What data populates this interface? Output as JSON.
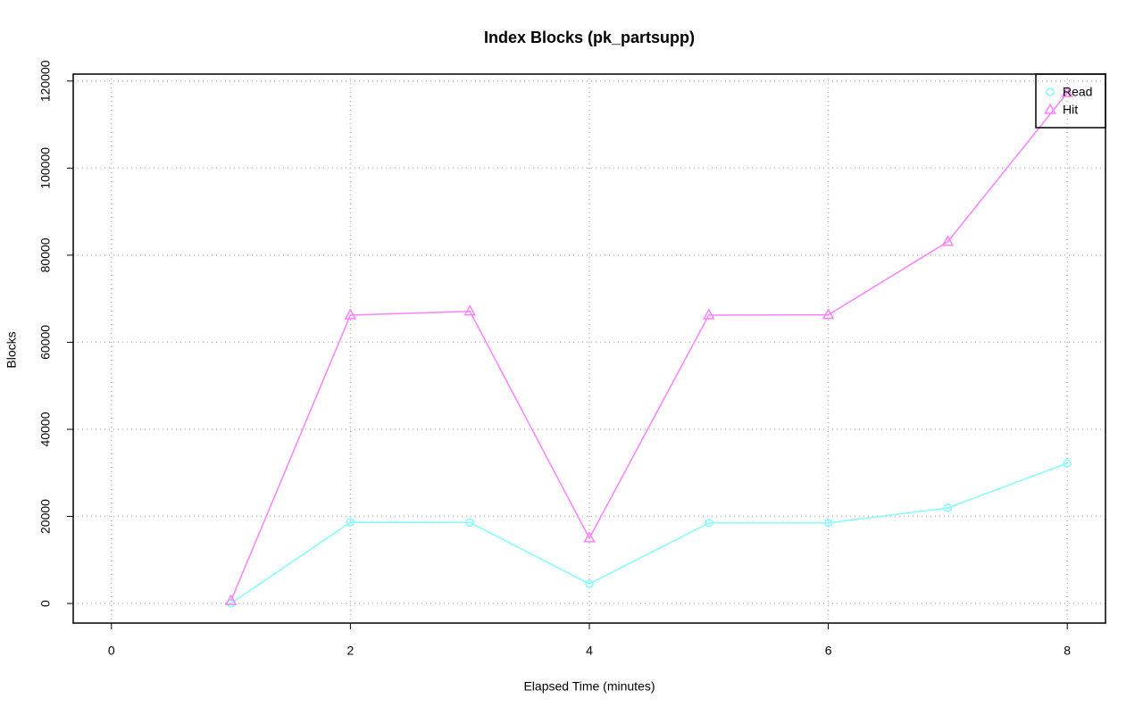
{
  "chart_data": {
    "type": "line",
    "title": "Index Blocks (pk_partsupp)",
    "x_label": "Elapsed Time (minutes)",
    "y_label": "Blocks",
    "x": [
      1,
      2,
      3,
      4,
      5,
      6,
      7,
      8
    ],
    "series": [
      {
        "name": "Read",
        "color": "#80ffff",
        "marker": "circle",
        "values": [
          0,
          18650,
          18600,
          4500,
          18500,
          18500,
          21950,
          32200
        ]
      },
      {
        "name": "Hit",
        "color": "#ff80ff",
        "marker": "triangle",
        "values": [
          600,
          66250,
          67100,
          15000,
          66250,
          66300,
          83100,
          117300
        ]
      }
    ],
    "xlim": [
      -0.32,
      8.32
    ],
    "xticks": [
      0,
      2,
      4,
      6,
      8
    ],
    "ylim": [
      -4500,
      121600
    ],
    "yticks": [
      0,
      20000,
      40000,
      60000,
      80000,
      100000,
      120000
    ],
    "grid": true,
    "legend": "topright"
  }
}
